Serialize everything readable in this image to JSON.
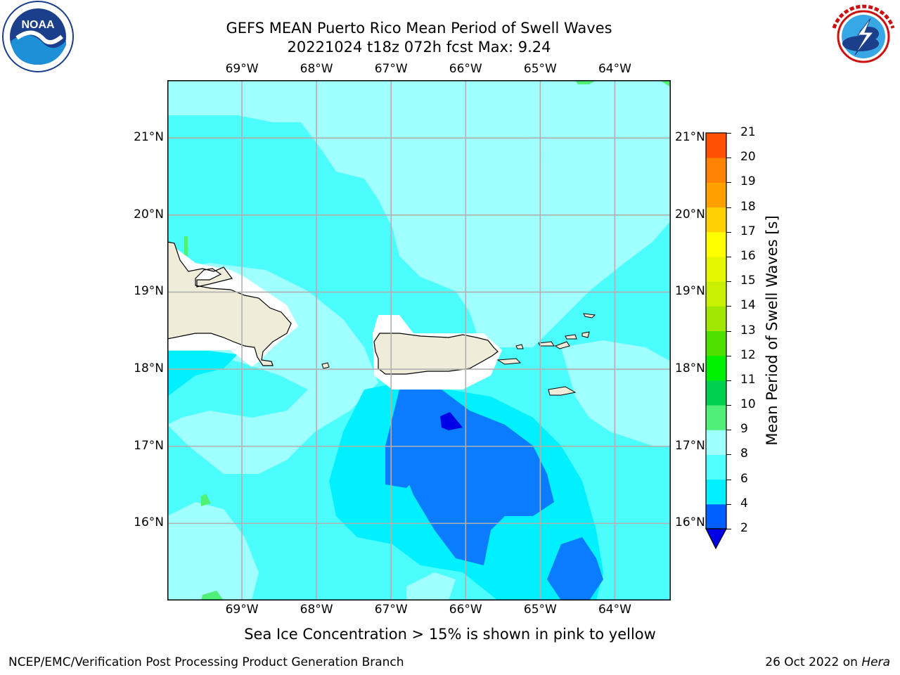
{
  "title_line1": "GEFS MEAN Puerto Rico Mean Period of Swell Waves",
  "title_line2": "20221024 t18z 072h fcst   Max: 9.24",
  "logos": {
    "left": {
      "icon": "noaa-logo",
      "text": "NOAA",
      "ring": "NATIONAL OCEANIC AND ATMOSPHERIC ADMINISTRATION · U.S. DEPARTMENT OF COMMERCE"
    },
    "right": {
      "icon": "nws-logo",
      "ring": "NATIONAL WEATHER SERVICE"
    }
  },
  "map": {
    "lon_range": [
      -70.0,
      -63.25
    ],
    "lat_range": [
      15.0,
      21.75
    ],
    "lon_ticks": [
      "69°W",
      "68°W",
      "67°W",
      "66°W",
      "65°W",
      "64°W"
    ],
    "lon_values": [
      -69,
      -68,
      -67,
      -66,
      -65,
      -64
    ],
    "lat_ticks": [
      "21°N",
      "20°N",
      "19°N",
      "18°N",
      "17°N",
      "16°N"
    ],
    "lat_values": [
      21,
      20,
      19,
      18,
      17,
      16
    ],
    "grid": true,
    "land_color": "#efedda",
    "water_base_color": "#4bfdfd"
  },
  "colorbar": {
    "label": "Mean Period of Swell Waves [s]",
    "ticks": [
      "2",
      "4",
      "6",
      "8",
      "9",
      "10",
      "11",
      "12",
      "13",
      "14",
      "15",
      "16",
      "17",
      "18",
      "19",
      "20",
      "21"
    ],
    "colors": [
      "#0060ff",
      "#00f0ff",
      "#50ffff",
      "#a0ffff",
      "#50f078",
      "#00d050",
      "#00f000",
      "#50e000",
      "#a0e600",
      "#c8f000",
      "#e6f500",
      "#ffff00",
      "#ffd200",
      "#ffa000",
      "#ff8200",
      "#ff5000",
      "#ff2000",
      "#ff0000"
    ],
    "extend_min_color": "#0000e6"
  },
  "note": "Sea Ice Concentration > 15% is shown in pink to yellow",
  "footer": {
    "left": "NCEP/EMC/Verification Post Processing Product Generation Branch",
    "date": "26 Oct 2022 on ",
    "host": "Hera"
  }
}
